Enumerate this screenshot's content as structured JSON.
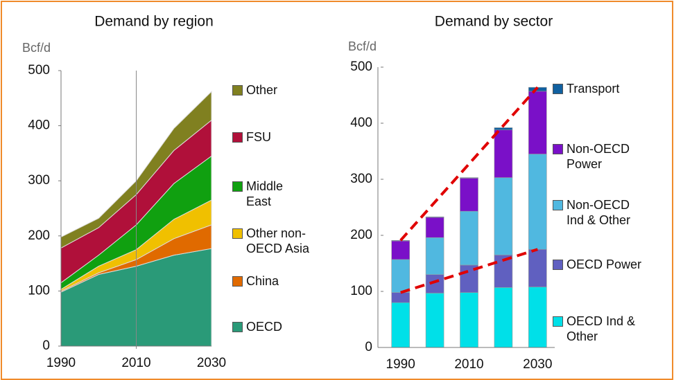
{
  "chart_data": [
    {
      "type": "stacked_area",
      "title": "Demand by region",
      "ylabel": "Bcf/d",
      "x": [
        1990,
        2000,
        2010,
        2020,
        2030
      ],
      "xlim": [
        1990,
        2030
      ],
      "xticks": [
        1990,
        2010,
        2030
      ],
      "ylim": [
        0,
        500
      ],
      "yticks": [
        0,
        100,
        200,
        300,
        400,
        500
      ],
      "grid": false,
      "legend": "right",
      "vline": 2010,
      "series": [
        {
          "name": "OECD",
          "color": "#2a9a78",
          "values": [
            98,
            130,
            145,
            165,
            177
          ]
        },
        {
          "name": "China",
          "color": "#e06a00",
          "values": [
            2,
            3,
            12,
            30,
            43
          ]
        },
        {
          "name": "Other non-OECD Asia",
          "color": "#f0c000",
          "values": [
            3,
            12,
            18,
            35,
            45
          ]
        },
        {
          "name": "Middle East",
          "color": "#10a010",
          "values": [
            12,
            20,
            45,
            65,
            80
          ]
        },
        {
          "name": "FSU",
          "color": "#b0103a",
          "values": [
            63,
            50,
            55,
            60,
            65
          ]
        },
        {
          "name": "Other",
          "color": "#808020",
          "values": [
            20,
            17,
            25,
            40,
            52
          ]
        }
      ]
    },
    {
      "type": "stacked_bar",
      "title": "Demand by sector",
      "ylabel": "Bcf/d",
      "categories": [
        "1990",
        null,
        "2010",
        null,
        "2030"
      ],
      "ylim": [
        0,
        500
      ],
      "yticks": [
        0,
        100,
        200,
        300,
        400,
        500
      ],
      "grid": false,
      "legend": "right",
      "trend_color": "#e00000",
      "series": [
        {
          "name": "OECD Ind & Other",
          "color": "#00e0e8",
          "values": [
            80,
            97,
            98,
            107,
            108
          ]
        },
        {
          "name": "OECD Power",
          "color": "#6060c0",
          "values": [
            18,
            33,
            49,
            58,
            67
          ]
        },
        {
          "name": "Non-OECD Ind & Other",
          "color": "#50b8e0",
          "values": [
            59,
            66,
            96,
            138,
            170
          ]
        },
        {
          "name": "Non-OECD Power",
          "color": "#7a10c8",
          "values": [
            33,
            36,
            59,
            85,
            112
          ]
        },
        {
          "name": "Transport",
          "color": "#1060a0",
          "values": [
            1,
            1,
            1,
            4,
            7
          ]
        }
      ]
    }
  ]
}
